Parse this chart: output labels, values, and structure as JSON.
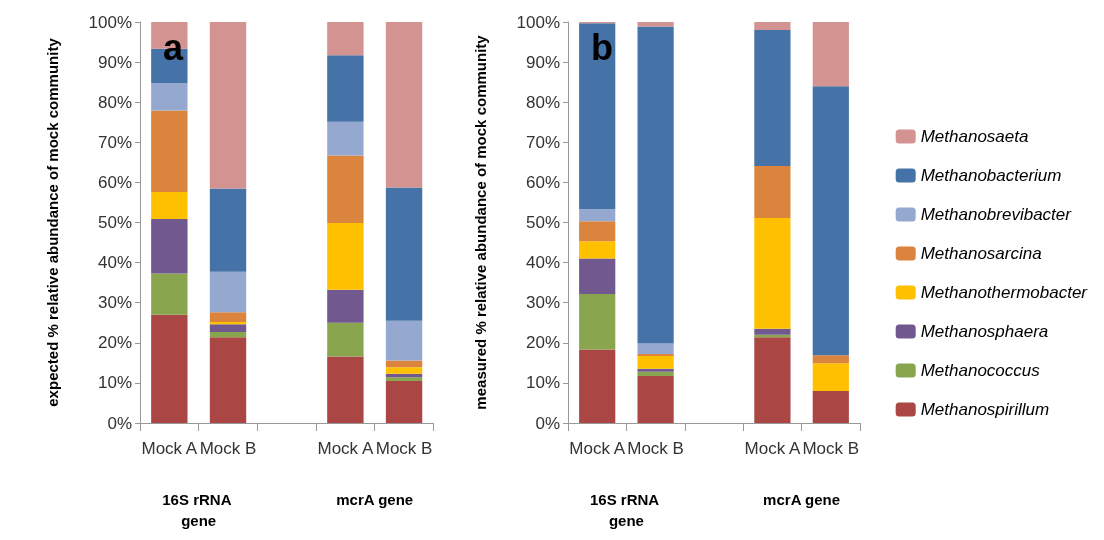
{
  "chart_data": [
    {
      "type": "bar",
      "title": "a",
      "ylabel": "expected % relative abundance of mock community",
      "stacked": true,
      "legend": false,
      "grid": false,
      "categories": [
        "Mock A",
        "Mock B",
        null,
        "Mock A",
        "Mock B"
      ],
      "annotations": [
        "16S rRNA gene",
        "mcrA gene"
      ],
      "ylim": [
        0,
        100
      ],
      "yticks": [
        {
          "value": 0,
          "label": "0%"
        },
        {
          "value": 10,
          "label": "10%"
        },
        {
          "value": 20,
          "label": "20%"
        },
        {
          "value": 30,
          "label": "30%"
        },
        {
          "value": 40,
          "label": "40%"
        },
        {
          "value": 50,
          "label": "50%"
        },
        {
          "value": 60,
          "label": "60%"
        },
        {
          "value": 70,
          "label": "70%"
        },
        {
          "value": 80,
          "label": "80%"
        },
        {
          "value": 90,
          "label": "90%"
        },
        {
          "value": 100,
          "label": "100%"
        }
      ],
      "series": [
        {
          "color": "#aa4643",
          "values": [
            27.0,
            21.4,
            null,
            16.6,
            10.5
          ]
        },
        {
          "color": "#89a54e",
          "values": [
            10.3,
            1.3,
            null,
            8.4,
            0.9
          ]
        },
        {
          "color": "#71588f",
          "values": [
            13.6,
            1.9,
            null,
            8.2,
            0.9
          ]
        },
        {
          "color": "#ffc000",
          "values": [
            6.7,
            0.6,
            null,
            16.7,
            1.6
          ]
        },
        {
          "color": "#db843d",
          "values": [
            20.3,
            2.4,
            null,
            16.8,
            1.7
          ]
        },
        {
          "color": "#95a9d0",
          "values": [
            6.8,
            10.1,
            null,
            8.4,
            9.9
          ]
        },
        {
          "color": "#4572a7",
          "values": [
            8.6,
            20.8,
            null,
            16.6,
            33.2
          ]
        },
        {
          "color": "#d39390",
          "values": [
            6.7,
            41.5,
            null,
            8.3,
            41.3
          ]
        }
      ]
    },
    {
      "type": "bar",
      "title": "b",
      "ylabel": "measured % relative abundance of mock community",
      "stacked": true,
      "legend": "right",
      "grid": false,
      "categories": [
        "Mock A",
        "Mock B",
        null,
        "Mock A",
        "Mock B"
      ],
      "annotations": [
        "16S rRNA gene",
        "mcrA gene"
      ],
      "ylim": [
        0,
        100
      ],
      "yticks": [
        {
          "value": 0,
          "label": "0%"
        },
        {
          "value": 10,
          "label": "10%"
        },
        {
          "value": 20,
          "label": "20%"
        },
        {
          "value": 30,
          "label": "30%"
        },
        {
          "value": 40,
          "label": "40%"
        },
        {
          "value": 50,
          "label": "50%"
        },
        {
          "value": 60,
          "label": "60%"
        },
        {
          "value": 70,
          "label": "70%"
        },
        {
          "value": 80,
          "label": "80%"
        },
        {
          "value": 90,
          "label": "90%"
        },
        {
          "value": 100,
          "label": "100%"
        }
      ],
      "series": [
        {
          "name": "Methanospirillum",
          "color": "#aa4643",
          "values": [
            18.3,
            11.7,
            null,
            21.4,
            8.0
          ]
        },
        {
          "name": "Methanococcus",
          "color": "#89a54e",
          "values": [
            13.9,
            1.1,
            null,
            0.6,
            0
          ]
        },
        {
          "name": "Methanosphaera",
          "color": "#71588f",
          "values": [
            8.8,
            0.7,
            null,
            1.5,
            0
          ]
        },
        {
          "name": "Methanothermobacter",
          "color": "#ffc000",
          "values": [
            4.3,
            3.2,
            null,
            27.6,
            6.9
          ]
        },
        {
          "name": "Methanosarcina",
          "color": "#db843d",
          "values": [
            5.0,
            0.5,
            null,
            13.0,
            2.0
          ]
        },
        {
          "name": "Methanobrevibacter",
          "color": "#95a9d0",
          "values": [
            3.0,
            2.6,
            null,
            0,
            null
          ]
        },
        {
          "name": "Methanobacterium",
          "color": "#4572a7",
          "values": [
            46.4,
            79.1,
            null,
            33.9,
            67.1
          ]
        },
        {
          "name": "Methanosaeta",
          "color": "#d39390",
          "values": [
            0.3,
            1.1,
            null,
            2.0,
            16.0
          ]
        }
      ]
    }
  ]
}
